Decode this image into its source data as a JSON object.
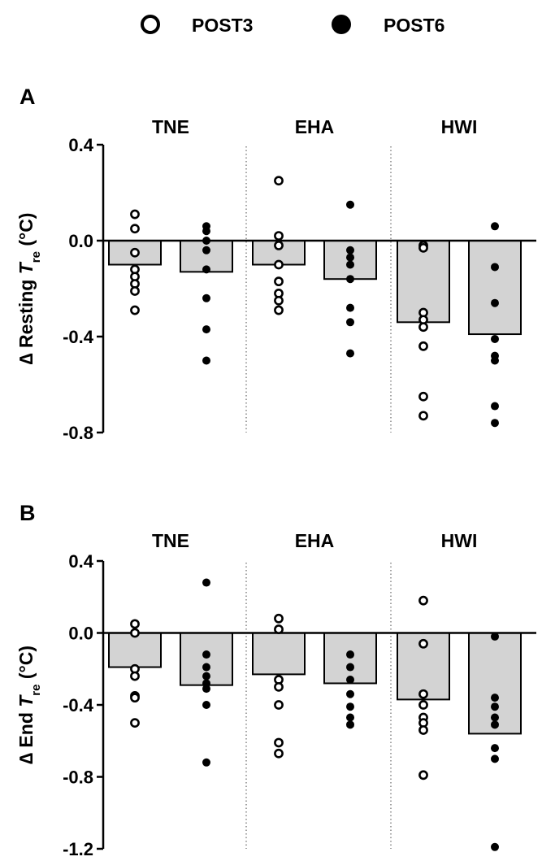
{
  "legend": {
    "entries": [
      {
        "label": "POST3",
        "marker": "open-circle"
      },
      {
        "label": "POST6",
        "marker": "filled-circle"
      }
    ],
    "placement": "top-center"
  },
  "colors": {
    "bar_fill": "#d3d3d3",
    "bar_stroke": "#000000",
    "marker": "#000000",
    "background": "#ffffff"
  },
  "chart_data": [
    {
      "type": "bar",
      "panel_label": "A",
      "categories": [
        "TNE",
        "EHA",
        "HWI"
      ],
      "ylabel_prefix": "∆ Resting ",
      "ylabel_var": "T",
      "ylabel_sub": "re",
      "ylabel_suffix": " (°C)",
      "ylim": [
        -0.8,
        0.4
      ],
      "yticks": [
        0.4,
        0.0,
        -0.4,
        -0.8
      ],
      "ytick_labels": [
        "0.4",
        "0.0",
        "-0.4",
        "-0.8"
      ],
      "series": [
        {
          "name": "POST3",
          "marker": "open-circle",
          "means": [
            -0.1,
            -0.1,
            -0.34
          ],
          "points": [
            [
              0.11,
              0.05,
              -0.05,
              -0.12,
              -0.15,
              -0.18,
              -0.21,
              -0.29
            ],
            [
              0.25,
              0.02,
              -0.02,
              -0.1,
              -0.17,
              -0.22,
              -0.25,
              -0.29
            ],
            [
              -0.02,
              -0.03,
              -0.3,
              -0.33,
              -0.36,
              -0.44,
              -0.65,
              -0.73
            ]
          ]
        },
        {
          "name": "POST6",
          "marker": "filled-circle",
          "means": [
            -0.13,
            -0.16,
            -0.39
          ],
          "points": [
            [
              0.06,
              0.04,
              0.0,
              -0.04,
              -0.12,
              -0.24,
              -0.37,
              -0.5
            ],
            [
              0.15,
              -0.04,
              -0.07,
              -0.1,
              -0.16,
              -0.28,
              -0.34,
              -0.47
            ],
            [
              0.06,
              -0.11,
              -0.26,
              -0.41,
              -0.48,
              -0.5,
              -0.69,
              -0.76
            ]
          ]
        }
      ]
    },
    {
      "type": "bar",
      "panel_label": "B",
      "categories": [
        "TNE",
        "EHA",
        "HWI"
      ],
      "ylabel_prefix": "∆ End ",
      "ylabel_var": "T",
      "ylabel_sub": "re",
      "ylabel_suffix": " (°C)",
      "ylim": [
        -1.2,
        0.4
      ],
      "yticks": [
        0.4,
        0.0,
        -0.4,
        -0.8,
        -1.2
      ],
      "ytick_labels": [
        "0.4",
        "0.0",
        "-0.4",
        "-0.8",
        "-1.2"
      ],
      "series": [
        {
          "name": "POST3",
          "marker": "open-circle",
          "means": [
            -0.19,
            -0.23,
            -0.37
          ],
          "points": [
            [
              0.05,
              0.0,
              -0.2,
              -0.24,
              -0.35,
              -0.36,
              -0.5
            ],
            [
              0.08,
              0.02,
              -0.26,
              -0.3,
              -0.4,
              -0.61,
              -0.67
            ],
            [
              0.18,
              -0.06,
              -0.34,
              -0.4,
              -0.47,
              -0.5,
              -0.54,
              -0.79
            ]
          ]
        },
        {
          "name": "POST6",
          "marker": "filled-circle",
          "means": [
            -0.29,
            -0.28,
            -0.56
          ],
          "points": [
            [
              0.28,
              -0.12,
              -0.19,
              -0.24,
              -0.28,
              -0.31,
              -0.4,
              -0.72
            ],
            [
              -0.12,
              -0.19,
              -0.26,
              -0.34,
              -0.41,
              -0.47,
              -0.51
            ],
            [
              -0.02,
              -0.36,
              -0.41,
              -0.47,
              -0.51,
              -0.64,
              -0.7,
              -1.19
            ]
          ]
        }
      ]
    }
  ]
}
